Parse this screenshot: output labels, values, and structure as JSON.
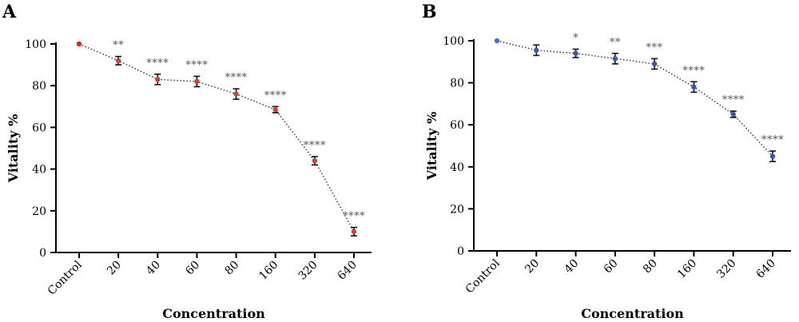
{
  "chart_data": [
    {
      "panel_label": "A",
      "type": "line",
      "xlabel": "Concentration",
      "ylabel": "Vitality %",
      "categories": [
        "Control",
        "20",
        "40",
        "60",
        "80",
        "160",
        "320",
        "640"
      ],
      "values": [
        100,
        92,
        83,
        82,
        76,
        68.5,
        44,
        10
      ],
      "errors": [
        0,
        2,
        2.5,
        2.5,
        2.5,
        1.5,
        2,
        2
      ],
      "significance": [
        "",
        "**",
        "****",
        "****",
        "****",
        "****",
        "****",
        "****"
      ],
      "yticks": [
        0,
        20,
        40,
        60,
        80,
        100
      ],
      "ylim": [
        0,
        100
      ],
      "marker_color": "#d43d3d",
      "control_color": "#e02020",
      "line_style": "dotted",
      "grid": false
    },
    {
      "panel_label": "B",
      "type": "line",
      "xlabel": "Concentration",
      "ylabel": "Vitality %",
      "categories": [
        "Control",
        "20",
        "40",
        "60",
        "80",
        "160",
        "320",
        "640"
      ],
      "values": [
        100,
        95.5,
        94,
        91.5,
        89,
        78,
        65,
        45
      ],
      "errors": [
        0,
        2.5,
        2,
        2.5,
        2.5,
        2.5,
        1.5,
        2.5
      ],
      "significance": [
        "",
        "",
        "*",
        "**",
        "***",
        "****",
        "****",
        "****"
      ],
      "yticks": [
        0,
        20,
        40,
        60,
        80,
        100
      ],
      "ylim": [
        0,
        100
      ],
      "marker_color": "#3a55b0",
      "control_color": "#4a6ae0",
      "line_style": "dotted",
      "grid": false
    }
  ]
}
